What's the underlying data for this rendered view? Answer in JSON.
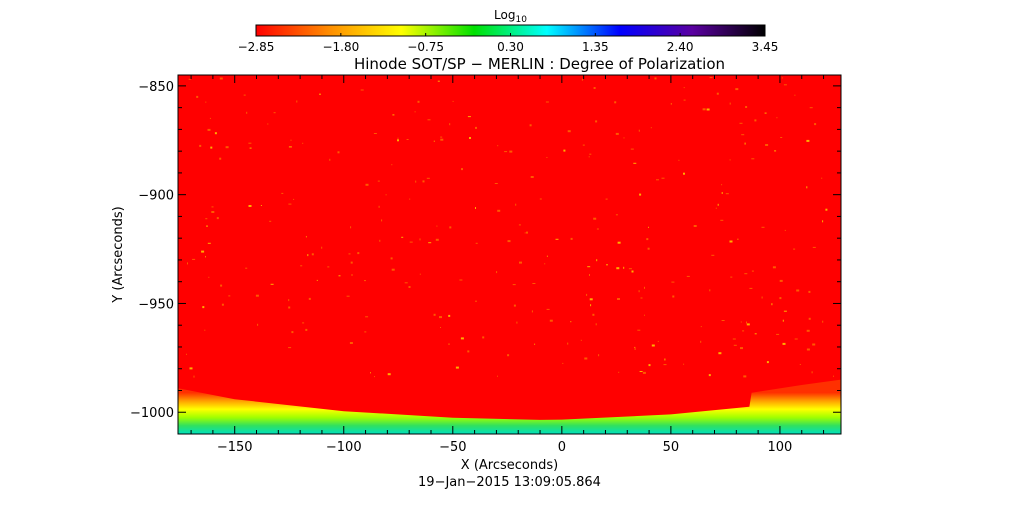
{
  "chart_data": {
    "type": "heatmap",
    "title": "Hinode SOT/SP − MERLIN : Degree of Polarization",
    "xlabel": "X (Arcseconds)",
    "ylabel": "Y (Arcseconds)",
    "date_label": "19−Jan−2015 13:09:05.864",
    "colorbar": {
      "label_base": "Log",
      "label_sub": "10",
      "ticks": [
        "−2.85",
        "−1.80",
        "−0.75",
        "0.30",
        "1.35",
        "2.40",
        "3.45"
      ],
      "range": [
        -2.85,
        3.45
      ],
      "colors": [
        "#ff0000",
        "#ff8c00",
        "#ffff00",
        "#00e000",
        "#00ffff",
        "#0000ff",
        "#5a00a0",
        "#000000"
      ]
    },
    "x_range": [
      -176,
      128
    ],
    "y_range": [
      -1010,
      -845
    ],
    "x_ticks": [
      -150,
      -100,
      -50,
      0,
      50,
      100
    ],
    "x_tick_labels": [
      "−150",
      "−100",
      "−50",
      "0",
      "50",
      "100"
    ],
    "y_ticks": [
      -850,
      -900,
      -950,
      -1000
    ],
    "y_tick_labels": [
      "−850",
      "−900",
      "−950",
      "−1000"
    ],
    "background_value": -2.85,
    "limb_edge": [
      {
        "x": -176,
        "y": -989
      },
      {
        "x": -150,
        "y": -994
      },
      {
        "x": -100,
        "y": -999.5
      },
      {
        "x": -50,
        "y": -1002.5
      },
      {
        "x": -10,
        "y": -1003.5
      },
      {
        "x": 0,
        "y": -1003.4
      },
      {
        "x": 50,
        "y": -1001
      },
      {
        "x": 86,
        "y": -997.5
      },
      {
        "x": 87,
        "y": -991
      },
      {
        "x": 110,
        "y": -987.5
      },
      {
        "x": 128,
        "y": -985
      }
    ],
    "off_limb_gradient": [
      "#ff3000",
      "#ffa000",
      "#ffff00",
      "#a0ff00",
      "#30e060",
      "#00e0c0"
    ]
  }
}
